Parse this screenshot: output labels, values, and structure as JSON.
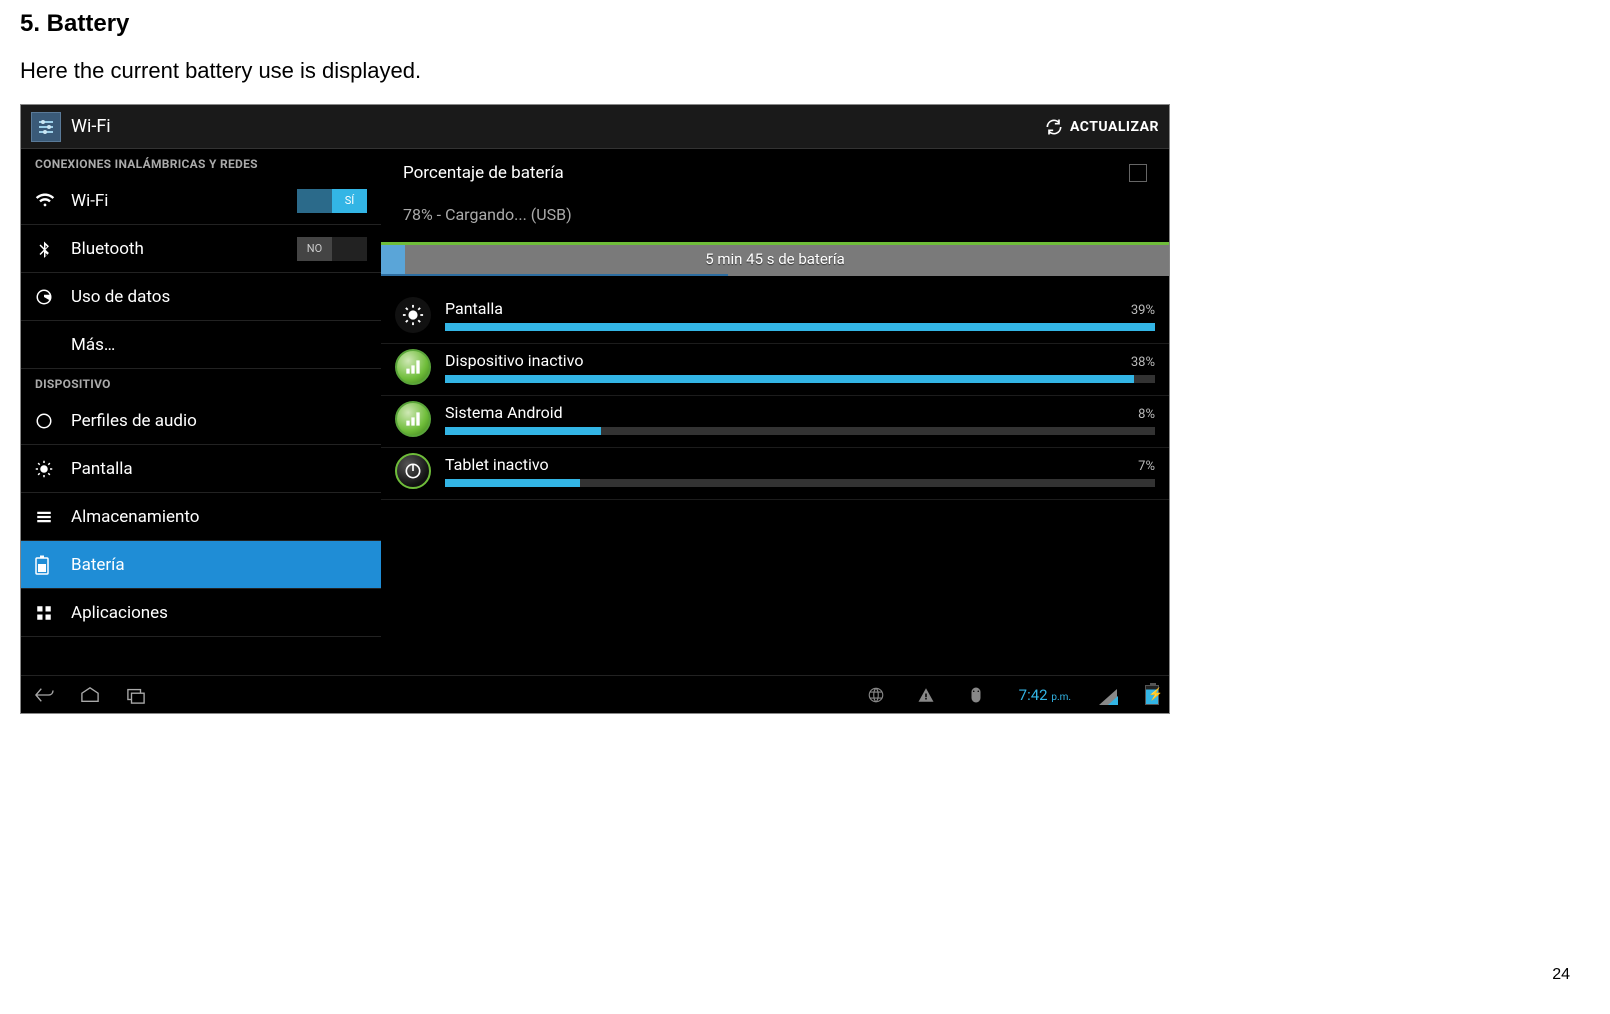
{
  "doc": {
    "title": "5. Battery",
    "body": "Here the current battery use is displayed.",
    "page_number": "24"
  },
  "screenshot": {
    "topbar": {
      "title": "Wi-Fi",
      "refresh_label": "ACTUALIZAR"
    },
    "sidebar": {
      "section1_header": "CONEXIONES INALÁMBRICAS Y REDES",
      "wifi": {
        "label": "Wi-Fi",
        "toggle_on_label": "SÍ",
        "enabled": true
      },
      "bluetooth": {
        "label": "Bluetooth",
        "toggle_off_label": "NO",
        "enabled": false
      },
      "data_usage": {
        "label": "Uso de datos"
      },
      "more": {
        "label": "Más…"
      },
      "section2_header": "DISPOSITIVO",
      "audio": {
        "label": "Perfiles de audio"
      },
      "display": {
        "label": "Pantalla"
      },
      "storage": {
        "label": "Almacenamiento"
      },
      "battery": {
        "label": "Batería",
        "selected": true
      },
      "apps": {
        "label": "Aplicaciones"
      }
    },
    "content": {
      "battery_percent_label": "Porcentaje de batería",
      "charging_text": "78% - Cargando... (USB)",
      "graph": {
        "duration_label": "5 min 45 s de batería",
        "blue_fill_pct": 3,
        "green_line_pct": 100,
        "background_color": "#7a7a7a",
        "accent_color": "#5aa5d8",
        "green_color": "#6fbd3a"
      },
      "usage": {
        "items": [
          {
            "name": "Pantalla",
            "pct": 39,
            "pct_label": "39%",
            "bar_pct": 100,
            "icon": "brightness"
          },
          {
            "name": "Dispositivo inactivo",
            "pct": 38,
            "pct_label": "38%",
            "bar_pct": 97,
            "icon": "android-signal"
          },
          {
            "name": "Sistema Android",
            "pct": 8,
            "pct_label": "8%",
            "bar_pct": 22,
            "icon": "android-signal"
          },
          {
            "name": "Tablet inactivo",
            "pct": 7,
            "pct_label": "7%",
            "bar_pct": 19,
            "icon": "power"
          }
        ],
        "bar_fg_color": "#33b5e5",
        "bar_bg_color": "#333333"
      }
    },
    "navbar": {
      "clock": "7:42",
      "clock_suffix": "p.m."
    },
    "colors": {
      "holo_blue": "#33b5e5",
      "selected_bg": "#1f8dd6",
      "bg": "#000000",
      "text_secondary": "#aaaaaa"
    }
  }
}
